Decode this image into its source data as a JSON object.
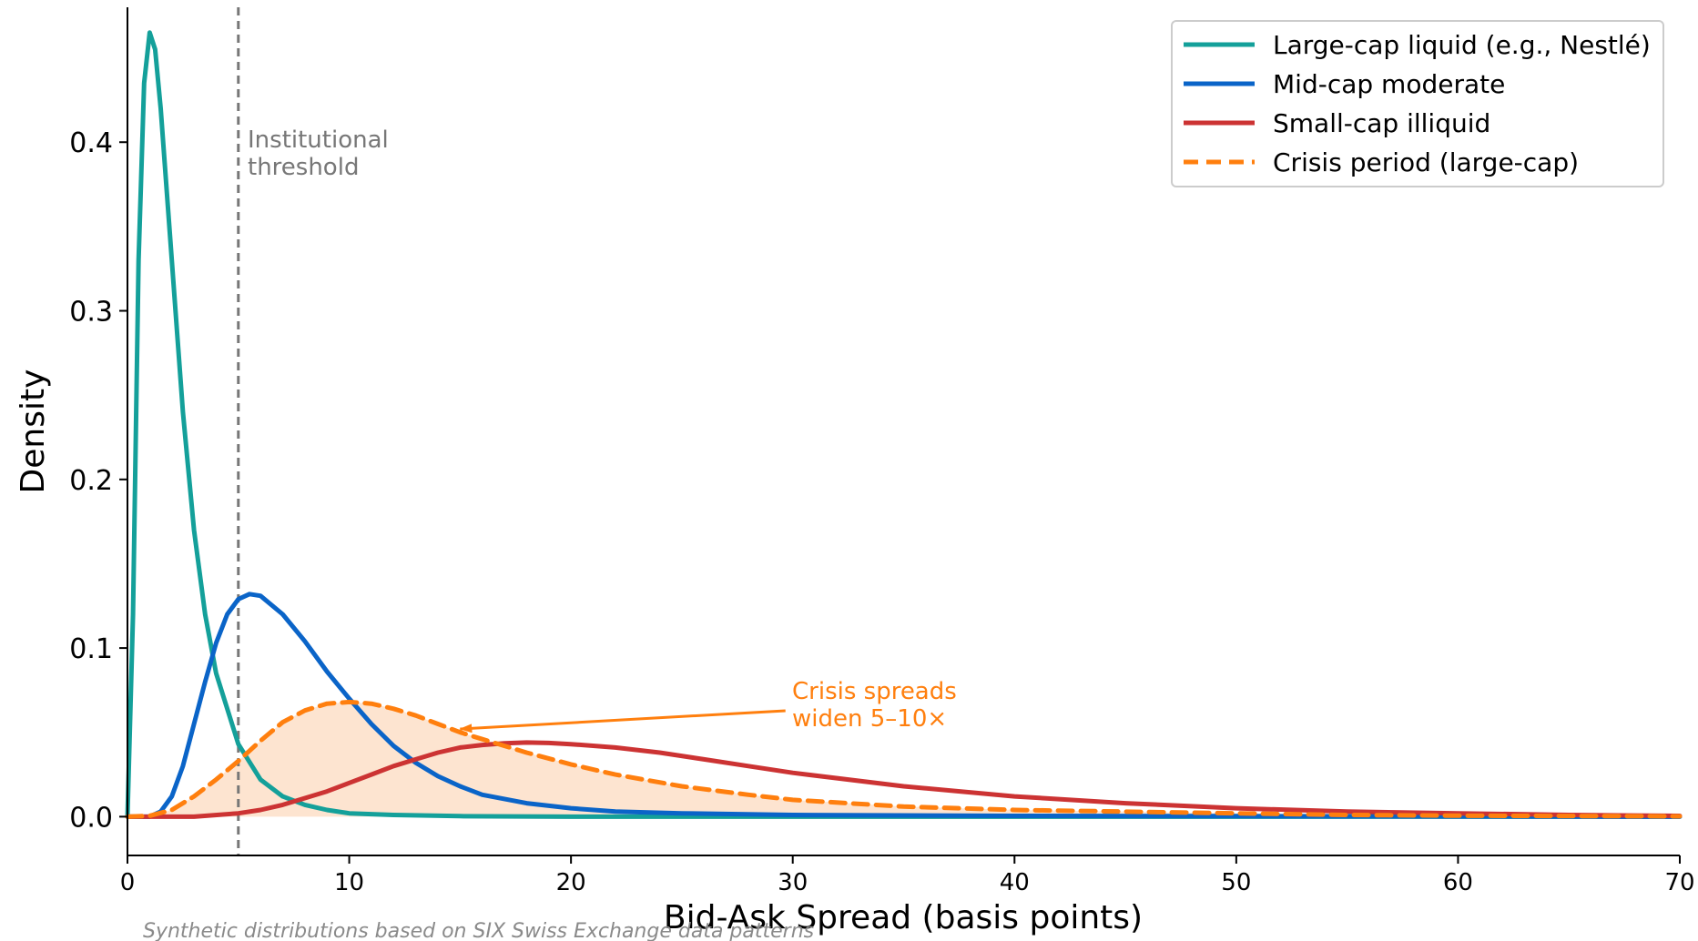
{
  "chart_data": {
    "type": "line",
    "title": "",
    "xlabel": "Bid-Ask Spread (basis points)",
    "ylabel": "Density",
    "xlim": [
      0,
      70
    ],
    "ylim": [
      -0.023,
      0.48
    ],
    "xticks": [
      0,
      10,
      20,
      30,
      40,
      50,
      60,
      70
    ],
    "yticks": [
      0.0,
      0.1,
      0.2,
      0.3,
      0.4
    ],
    "xtick_labels": [
      "0",
      "10",
      "20",
      "30",
      "40",
      "50",
      "60",
      "70"
    ],
    "ytick_labels": [
      "0.0",
      "0.1",
      "0.2",
      "0.3",
      "0.4"
    ],
    "grid": false,
    "legend_position": "top-right",
    "series": [
      {
        "name": "Large-cap liquid (e.g., Nestlé)",
        "color": "#14a09a",
        "style": "solid",
        "x": [
          0,
          0.25,
          0.5,
          0.75,
          1.0,
          1.25,
          1.5,
          2,
          2.5,
          3,
          3.5,
          4,
          5,
          6,
          7,
          8,
          9,
          10,
          12,
          15,
          20,
          30,
          50,
          70
        ],
        "y": [
          0.0,
          0.12,
          0.33,
          0.435,
          0.465,
          0.455,
          0.42,
          0.33,
          0.24,
          0.17,
          0.12,
          0.085,
          0.043,
          0.022,
          0.012,
          0.007,
          0.004,
          0.002,
          0.001,
          0.0003,
          0.0,
          0.0,
          0.0,
          0.0
        ]
      },
      {
        "name": "Mid-cap moderate",
        "color": "#0a64c8",
        "style": "solid",
        "x": [
          0,
          1,
          1.5,
          2,
          2.5,
          3,
          3.5,
          4,
          4.5,
          5,
          5.5,
          6,
          7,
          8,
          9,
          10,
          11,
          12,
          13,
          14,
          15,
          16,
          18,
          20,
          22,
          25,
          30,
          40,
          50,
          70
        ],
        "y": [
          0.0,
          0.0,
          0.003,
          0.012,
          0.03,
          0.055,
          0.08,
          0.103,
          0.12,
          0.129,
          0.132,
          0.131,
          0.12,
          0.104,
          0.086,
          0.07,
          0.055,
          0.042,
          0.032,
          0.024,
          0.018,
          0.013,
          0.008,
          0.005,
          0.003,
          0.002,
          0.001,
          0.0005,
          0.0003,
          0.0
        ]
      },
      {
        "name": "Small-cap illiquid",
        "color": "#cc3333",
        "style": "solid",
        "x": [
          0,
          3,
          5,
          6,
          7,
          8,
          9,
          10,
          11,
          12,
          13,
          14,
          15,
          16,
          17,
          18,
          19,
          20,
          22,
          24,
          26,
          28,
          30,
          35,
          40,
          45,
          50,
          55,
          60,
          65,
          70
        ],
        "y": [
          0.0,
          0.0,
          0.002,
          0.004,
          0.007,
          0.011,
          0.015,
          0.02,
          0.025,
          0.03,
          0.034,
          0.038,
          0.041,
          0.0425,
          0.0435,
          0.044,
          0.0437,
          0.043,
          0.041,
          0.038,
          0.034,
          0.03,
          0.026,
          0.018,
          0.012,
          0.008,
          0.005,
          0.003,
          0.002,
          0.001,
          0.0005
        ]
      },
      {
        "name": "Crisis period (large-cap)",
        "color": "#ff7f0e",
        "style": "dashed",
        "fill": "#fde4d0",
        "x": [
          0,
          1,
          2,
          3,
          4,
          5,
          6,
          7,
          8,
          9,
          10,
          11,
          12,
          13,
          14,
          15,
          16,
          17,
          18,
          20,
          22,
          25,
          28,
          30,
          35,
          40,
          45,
          50,
          55,
          60,
          70
        ],
        "y": [
          0.0,
          0.0005,
          0.004,
          0.012,
          0.022,
          0.033,
          0.045,
          0.056,
          0.063,
          0.067,
          0.068,
          0.067,
          0.064,
          0.06,
          0.055,
          0.05,
          0.046,
          0.042,
          0.038,
          0.031,
          0.025,
          0.018,
          0.013,
          0.01,
          0.006,
          0.004,
          0.003,
          0.002,
          0.001,
          0.0006,
          0.0002
        ]
      }
    ],
    "reference_line": {
      "x": 5,
      "label_line1": "Institutional",
      "label_line2": "threshold",
      "color": "#777777"
    },
    "annotation": {
      "line1": "Crisis spreads",
      "line2": "widen 5–10×",
      "color": "#ff7f0e",
      "text_x": 30,
      "text_y": 0.065,
      "arrow_to_x": 15,
      "arrow_to_y": 0.052
    },
    "footnote": "Synthetic distributions based on SIX Swiss Exchange data patterns"
  }
}
